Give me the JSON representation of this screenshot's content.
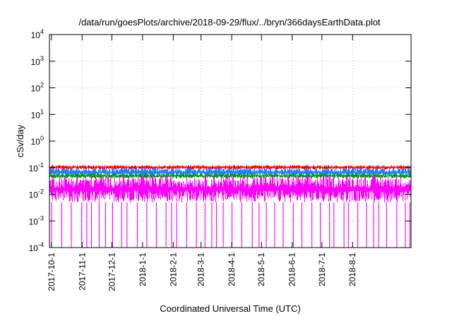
{
  "chart_data": {
    "type": "line",
    "title": "/data/run/goesPlots/archive/2018-09-29/flux/../bryn/366daysEarthData.plot",
    "xlabel": "Coordinated Universal Time (UTC)",
    "ylabel": "cSv/day",
    "y_scale": "log",
    "ylim": [
      0.0001,
      10000
    ],
    "xlim": [
      "2017-09-29",
      "2018-09-29"
    ],
    "grid": true,
    "y_ticks": [
      {
        "mant": "10",
        "exp": "-4",
        "value": 0.0001
      },
      {
        "mant": "10",
        "exp": "-3",
        "value": 0.001
      },
      {
        "mant": "10",
        "exp": "-2",
        "value": 0.01
      },
      {
        "mant": "10",
        "exp": "-1",
        "value": 0.1
      },
      {
        "mant": "10",
        "exp": "0",
        "value": 1
      },
      {
        "mant": "10",
        "exp": "1",
        "value": 10
      },
      {
        "mant": "10",
        "exp": "2",
        "value": 100
      },
      {
        "mant": "10",
        "exp": "3",
        "value": 1000
      },
      {
        "mant": "10",
        "exp": "4",
        "value": 10000
      }
    ],
    "x_ticks": [
      {
        "label": "2017-10-1",
        "date": "2017-10-01"
      },
      {
        "label": "2017-11-1",
        "date": "2017-11-01"
      },
      {
        "label": "2017-12-1",
        "date": "2017-12-01"
      },
      {
        "label": "2018-1-1",
        "date": "2018-01-01"
      },
      {
        "label": "2018-2-1",
        "date": "2018-02-01"
      },
      {
        "label": "2018-3-1",
        "date": "2018-03-01"
      },
      {
        "label": "2018-4-1",
        "date": "2018-04-01"
      },
      {
        "label": "2018-5-1",
        "date": "2018-05-01"
      },
      {
        "label": "2018-6-1",
        "date": "2018-06-01"
      },
      {
        "label": "2018-7-1",
        "date": "2018-07-01"
      },
      {
        "label": "2018-8-1",
        "date": "2018-08-01"
      }
    ],
    "series": [
      {
        "color": "#ff0000",
        "typical_value": 0.1,
        "range": [
          0.085,
          0.125
        ]
      },
      {
        "color": "#1f7fff",
        "typical_value": 0.07,
        "range": [
          0.045,
          0.1
        ]
      },
      {
        "color": "#00a000",
        "typical_value": 0.05,
        "range": [
          0.04,
          0.06
        ]
      },
      {
        "color": "#ff00ff",
        "typical_value": 0.02,
        "range": [
          0.005,
          0.05
        ],
        "dropouts_to": 0.0001
      }
    ]
  }
}
